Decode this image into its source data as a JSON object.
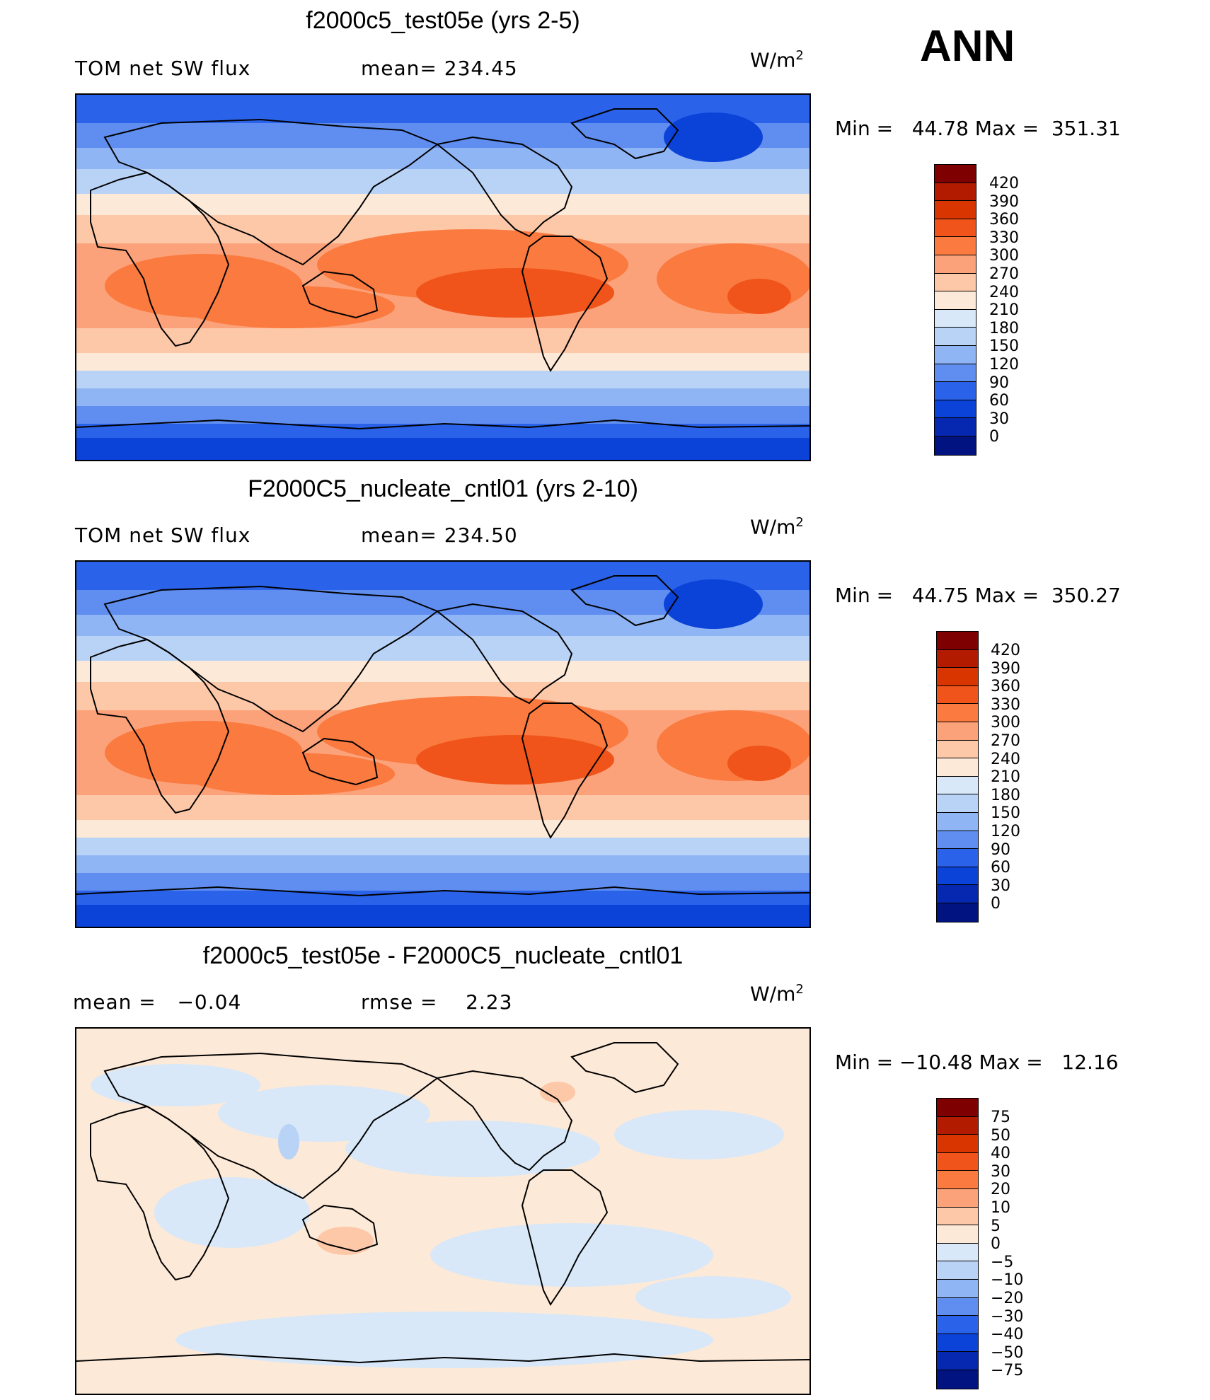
{
  "season": "ANN",
  "panels": [
    {
      "title": "f2000c5_test05e (yrs 2-5)",
      "variable": "TOM net SW flux",
      "stat_left": "",
      "stat_mid": "mean= 234.45",
      "units_base": "W/m",
      "units_exp": "2",
      "minmax": "Min =   44.78 Max =  351.31",
      "kind": "field"
    },
    {
      "title": "F2000C5_nucleate_cntl01 (yrs 2-10)",
      "variable": "TOM net SW flux",
      "stat_left": "",
      "stat_mid": "mean= 234.50",
      "units_base": "W/m",
      "units_exp": "2",
      "minmax": "Min =   44.75 Max =  350.27",
      "kind": "field"
    },
    {
      "title": "f2000c5_test05e - F2000C5_nucleate_cntl01",
      "variable": "",
      "stat_left": "mean =   −0.04",
      "stat_mid": "rmse =    2.23",
      "units_base": "W/m",
      "units_exp": "2",
      "minmax": "Min = −10.48 Max =   12.16",
      "kind": "diff"
    }
  ],
  "colorbars": {
    "field": {
      "labels": [
        "420",
        "390",
        "360",
        "330",
        "300",
        "270",
        "240",
        "210",
        "180",
        "150",
        "120",
        "90",
        "60",
        "30",
        "0"
      ],
      "colors": [
        "#7f0000",
        "#b21b00",
        "#d83500",
        "#f0541a",
        "#fa7a3f",
        "#fca27a",
        "#fdc8a8",
        "#fde9d7",
        "#d8e8f8",
        "#b9d3f7",
        "#90b5f5",
        "#5f8ef0",
        "#2a62ea",
        "#0b42d8",
        "#0628b0",
        "#001380"
      ]
    },
    "diff": {
      "labels": [
        "75",
        "50",
        "40",
        "30",
        "20",
        "10",
        "5",
        "0",
        "−5",
        "−10",
        "−20",
        "−30",
        "−40",
        "−50",
        "−75"
      ],
      "colors": [
        "#7f0000",
        "#b21b00",
        "#d83500",
        "#f0541a",
        "#fa7a3f",
        "#fca27a",
        "#fdc8a8",
        "#fde9d7",
        "#d8e8f8",
        "#b9d3f7",
        "#90b5f5",
        "#5f8ef0",
        "#2a62ea",
        "#0b42d8",
        "#0628b0",
        "#001380"
      ]
    }
  }
}
